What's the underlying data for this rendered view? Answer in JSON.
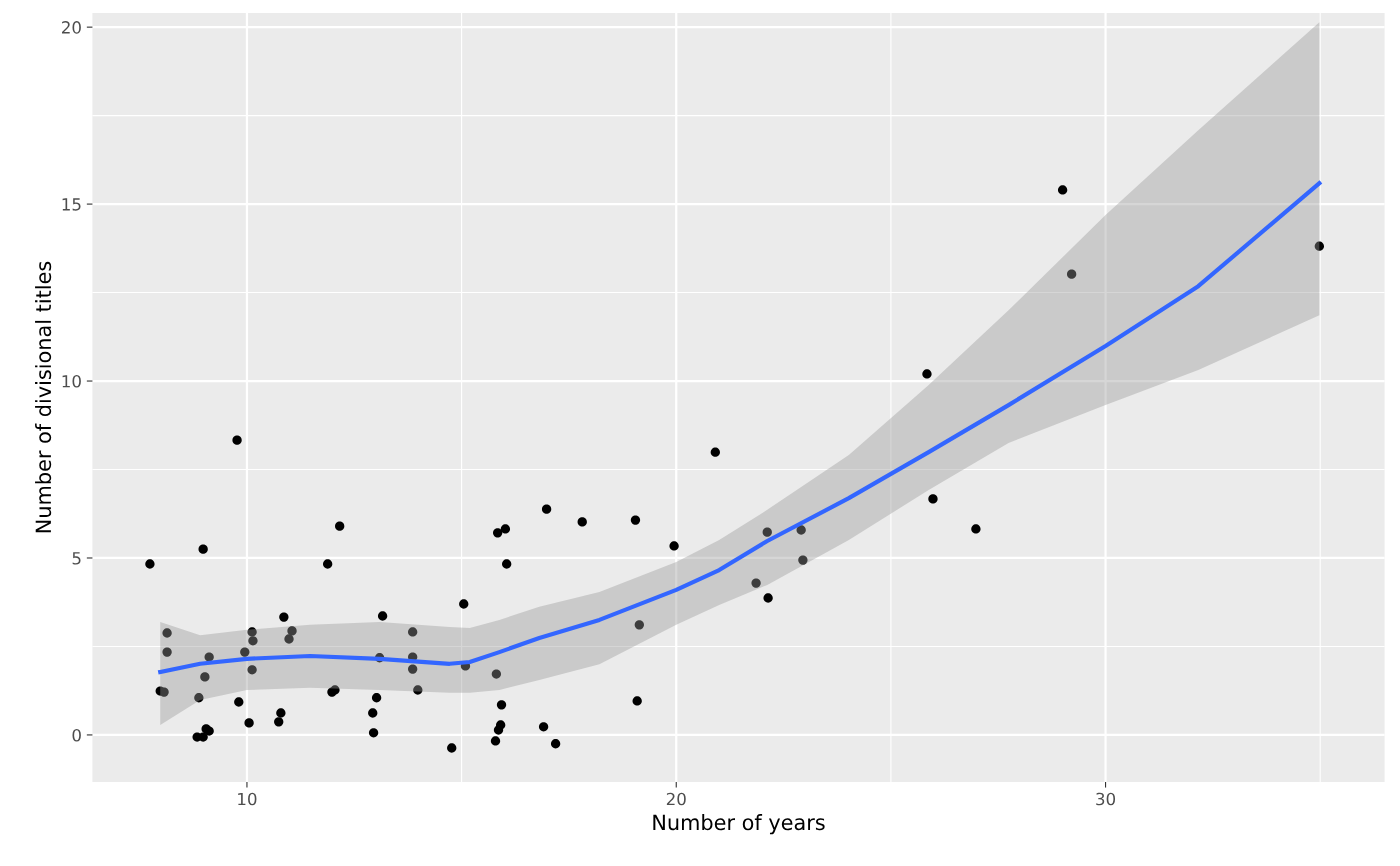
{
  "chart_data": {
    "type": "scatter",
    "xlabel": "Number of years",
    "ylabel": "Number of divisional titles",
    "xlim": [
      6.4,
      36.5
    ],
    "ylim": [
      -1.33,
      20.4
    ],
    "xticks": [
      10,
      20,
      30
    ],
    "yticks": [
      0,
      5,
      10,
      15,
      20
    ],
    "grid": true,
    "legend": false,
    "series": [
      {
        "color": "#000000",
        "marker": "circle",
        "x": [
          7.74,
          7.98,
          8.07,
          8.14,
          8.14,
          8.84,
          8.98,
          8.88,
          8.98,
          9.02,
          9.05,
          9.12,
          9.12,
          9.77,
          9.81,
          9.95,
          10.05,
          10.12,
          10.14,
          10.12,
          10.74,
          10.79,
          10.86,
          10.98,
          11.05,
          11.88,
          11.98,
          12.05,
          12.16,
          12.93,
          12.95,
          13.02,
          13.09,
          13.16,
          13.86,
          13.86,
          13.86,
          13.98,
          14.77,
          15.05,
          15.09,
          15.84,
          16.02,
          16.05,
          16.98,
          17.81,
          19.05,
          19.95,
          20.91,
          15.81,
          15.93,
          15.91,
          15.86,
          15.79,
          16.91,
          17.19,
          19.14,
          19.09,
          22.12,
          22.91,
          21.86,
          22.14,
          22.95,
          25.84,
          25.98,
          26.98,
          29.0,
          29.21,
          34.98
        ],
        "values": [
          4.83,
          1.24,
          1.21,
          2.88,
          2.34,
          -0.06,
          -0.06,
          1.05,
          5.25,
          1.64,
          0.17,
          0.11,
          2.2,
          8.33,
          0.93,
          2.34,
          0.34,
          2.91,
          2.66,
          1.84,
          0.37,
          0.62,
          3.33,
          2.71,
          2.94,
          4.83,
          1.21,
          1.27,
          5.9,
          0.62,
          0.06,
          1.05,
          2.18,
          3.36,
          2.91,
          2.2,
          1.86,
          1.27,
          -0.37,
          3.7,
          1.95,
          5.71,
          5.82,
          4.83,
          6.38,
          6.02,
          6.07,
          5.34,
          7.99,
          1.72,
          0.85,
          0.28,
          0.14,
          -0.17,
          0.23,
          -0.25,
          3.11,
          0.96,
          5.73,
          5.79,
          4.29,
          3.87,
          4.94,
          10.2,
          6.67,
          5.82,
          15.4,
          13.02,
          13.81
        ]
      },
      {
        "type": "line",
        "color": "#3366ff",
        "line_style": "solid",
        "marker": "none",
        "x": [
          7.98,
          8.91,
          10.0,
          11.47,
          13.09,
          14.72,
          15.19,
          15.88,
          16.81,
          18.21,
          20.0,
          21.0,
          22.12,
          24.02,
          25.88,
          27.74,
          30.0,
          32.16,
          34.98
        ],
        "values": [
          1.78,
          2.01,
          2.15,
          2.23,
          2.15,
          2.01,
          2.06,
          2.34,
          2.74,
          3.25,
          4.1,
          4.66,
          5.48,
          6.69,
          7.99,
          9.32,
          10.99,
          12.68,
          15.59
        ],
        "lower": [
          0.28,
          0.99,
          1.27,
          1.33,
          1.27,
          1.19,
          1.19,
          1.27,
          1.55,
          2.0,
          3.11,
          3.67,
          4.24,
          5.51,
          6.92,
          8.25,
          9.32,
          10.31,
          11.86
        ],
        "upper": [
          3.19,
          2.82,
          2.97,
          3.11,
          3.19,
          3.05,
          3.02,
          3.25,
          3.62,
          4.04,
          4.89,
          5.51,
          6.36,
          7.91,
          9.89,
          12.0,
          14.69,
          17.09,
          20.14
        ]
      }
    ]
  }
}
